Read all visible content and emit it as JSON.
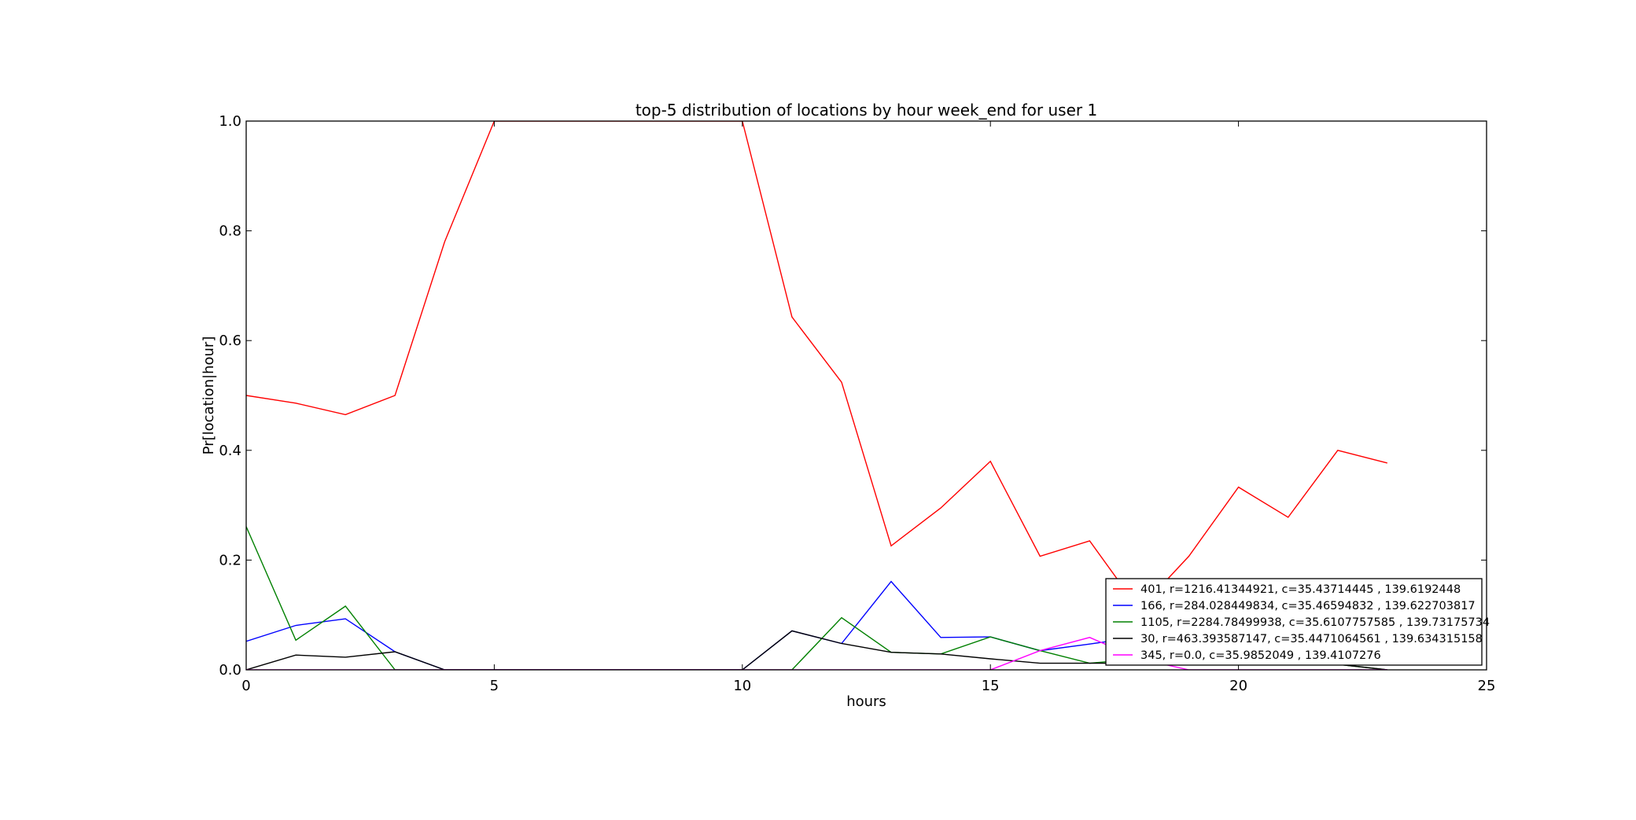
{
  "chart_data": {
    "type": "line",
    "title": "top-5 distribution of locations by hour week_end for user 1",
    "xlabel": "hours",
    "ylabel": "Pr[location|hour]",
    "xlim": [
      0,
      25
    ],
    "ylim": [
      0,
      1.0
    ],
    "xticks": [
      "0",
      "5",
      "10",
      "15",
      "20",
      "25"
    ],
    "yticks": [
      "0.0",
      "0.2",
      "0.4",
      "0.6",
      "0.8",
      "1.0"
    ],
    "grid": false,
    "legend_position": "lower right",
    "x": [
      0,
      1,
      2,
      3,
      4,
      5,
      6,
      7,
      8,
      9,
      10,
      11,
      12,
      13,
      14,
      15,
      16,
      17,
      18,
      19,
      20,
      21,
      22,
      23
    ],
    "series": [
      {
        "name": "401, r=1216.41344921, c=35.43714445 , 139.6192448",
        "color": "#ff0000",
        "values": [
          0.5,
          0.486,
          0.465,
          0.5,
          0.78,
          1.0,
          1.0,
          1.0,
          1.0,
          1.0,
          1.0,
          0.643,
          0.524,
          0.226,
          0.295,
          0.38,
          0.207,
          0.235,
          0.11,
          0.207,
          0.333,
          0.278,
          0.4,
          0.377
        ]
      },
      {
        "name": "166, r=284.028449834, c=35.46594832 , 139.622703817",
        "color": "#0000ff",
        "values": [
          0.052,
          0.081,
          0.093,
          0.033,
          0,
          0,
          0,
          0,
          0,
          0,
          0,
          0.071,
          0.048,
          0.161,
          0.059,
          0.06,
          0.035,
          0.047,
          0.06,
          0.025,
          0.01,
          0.01,
          0.02,
          0.01
        ]
      },
      {
        "name": "1105, r=2284.78499938, c=35.6107757585 , 139.73175734",
        "color": "#008000",
        "values": [
          0.261,
          0.054,
          0.116,
          0,
          0,
          0,
          0,
          0,
          0,
          0,
          0,
          0,
          0.095,
          0.032,
          0.029,
          0.06,
          0.035,
          0.012,
          0.02,
          0.02,
          0.015,
          0.01,
          0.01,
          0
        ]
      },
      {
        "name": "30, r=463.393587147, c=35.4471064561 , 139.634315158",
        "color": "#000000",
        "values": [
          0,
          0.027,
          0.023,
          0.033,
          0,
          0,
          0,
          0,
          0,
          0,
          0,
          0.071,
          0.048,
          0.032,
          0.029,
          0.02,
          0.012,
          0.012,
          0.012,
          0.01,
          0.01,
          0.01,
          0.01,
          0
        ]
      },
      {
        "name": "345, r=0.0, c=35.9852049 , 139.4107276",
        "color": "#ff00ff",
        "values": [
          0,
          0,
          0,
          0,
          0,
          0,
          0,
          0,
          0,
          0,
          0,
          0,
          0,
          0,
          0,
          0,
          0.035,
          0.059,
          0.02,
          0,
          0,
          0,
          0,
          0
        ]
      }
    ]
  }
}
